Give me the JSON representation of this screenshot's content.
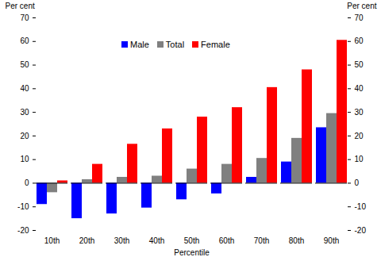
{
  "chart_data": {
    "type": "bar",
    "categories": [
      "10th",
      "20th",
      "30th",
      "40th",
      "50th",
      "60th",
      "70th",
      "80th",
      "90th"
    ],
    "series": [
      {
        "name": "Male",
        "color": "#0000ff",
        "values": [
          -9,
          -15,
          -13,
          -10.5,
          -7,
          -4.5,
          2.5,
          9,
          23.5
        ]
      },
      {
        "name": "Total",
        "color": "#808080",
        "values": [
          -4,
          1.5,
          2.5,
          3,
          6,
          8,
          10.5,
          19,
          29.5
        ]
      },
      {
        "name": "Female",
        "color": "#ff0000",
        "values": [
          1,
          8,
          16.5,
          23,
          28,
          32,
          40.5,
          48,
          60.5
        ]
      }
    ],
    "x_label": "Percentile",
    "y_label": "Per cent",
    "ylim": [
      -20,
      70
    ],
    "yticks": [
      -20,
      -10,
      0,
      10,
      20,
      30,
      40,
      50,
      60,
      70
    ],
    "y2_label": "Per cent",
    "y2lim": [
      -20,
      70
    ],
    "y2ticks": [
      -20,
      -10,
      0,
      10,
      20,
      30,
      40,
      50,
      60,
      70
    ],
    "legend": "top",
    "grid": false
  }
}
